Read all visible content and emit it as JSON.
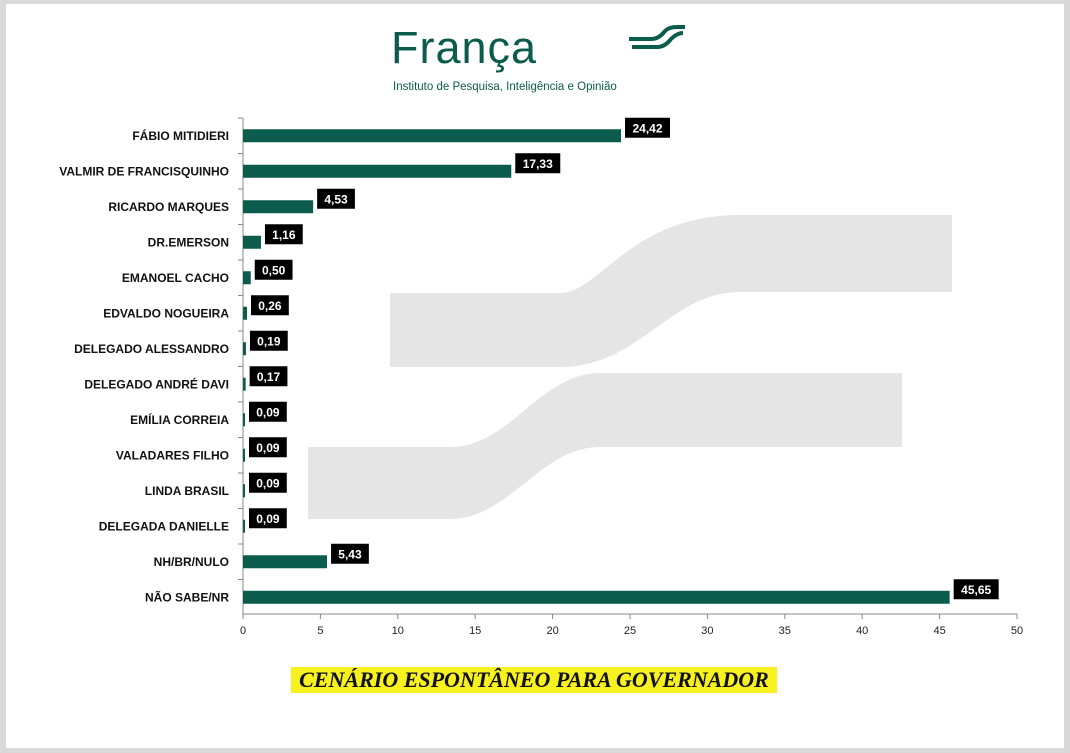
{
  "brand": {
    "name": "França",
    "tagline": "Instituto de Pesquisa, Inteligência e Opinião",
    "color": "#0b5c4c"
  },
  "chart_data": {
    "type": "bar",
    "orientation": "horizontal",
    "title": "CENÁRIO ESPONTÂNEO PARA GOVERNADOR",
    "categories": [
      "FÁBIO MITIDIERI",
      "VALMIR DE FRANCISQUINHO",
      "RICARDO MARQUES",
      "DR.EMERSON",
      "EMANOEL CACHO",
      "EDVALDO NOGUEIRA",
      "DELEGADO ALESSANDRO",
      "DELEGADO ANDRÉ DAVI",
      "EMÍLIA CORREIA",
      "VALADARES FILHO",
      "LINDA BRASIL",
      "DELEGADA DANIELLE",
      "NH/BR/NULO",
      "NÃO SABE/NR"
    ],
    "values": [
      24.42,
      17.33,
      4.53,
      1.16,
      0.5,
      0.26,
      0.19,
      0.17,
      0.09,
      0.09,
      0.09,
      0.09,
      5.43,
      45.65
    ],
    "value_labels": [
      "24,42",
      "17,33",
      "4,53",
      "1,16",
      "0,50",
      "0,26",
      "0,19",
      "0,17",
      "0,09",
      "0,09",
      "0,09",
      "0,09",
      "5,43",
      "45,65"
    ],
    "xlim": [
      0,
      50
    ],
    "xticks": [
      0,
      5,
      10,
      15,
      20,
      25,
      30,
      35,
      40,
      45,
      50
    ],
    "xlabel": "",
    "ylabel": "",
    "bar_color": "#0b5c4c",
    "label_bg": "#000000",
    "grid": false
  }
}
